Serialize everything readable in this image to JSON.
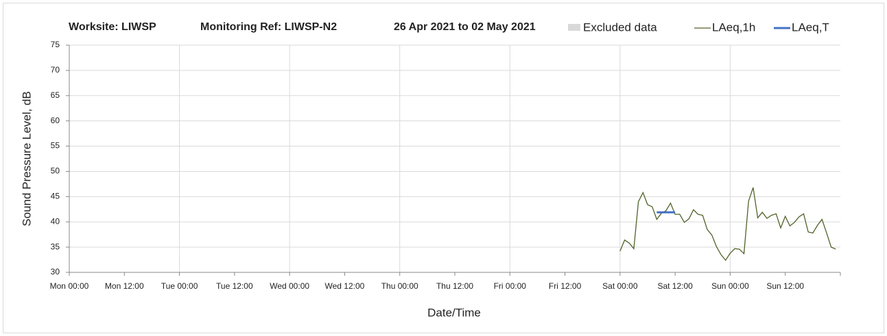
{
  "chart_data": {
    "type": "line",
    "title_parts": [
      "Worksite: LIWSP",
      "Monitoring Ref: LIWSP-N2",
      "26 Apr 2021 to 02 May 2021"
    ],
    "x_label": "Date/Time",
    "y_label": "Sound Pressure Level, dB",
    "xlim": [
      0,
      168
    ],
    "xticks": [
      {
        "value": 0,
        "label": "Mon 00:00"
      },
      {
        "value": 12,
        "label": "Mon 12:00"
      },
      {
        "value": 24,
        "label": "Tue 00:00"
      },
      {
        "value": 36,
        "label": "Tue 12:00"
      },
      {
        "value": 48,
        "label": "Wed 00:00"
      },
      {
        "value": 60,
        "label": "Wed 12:00"
      },
      {
        "value": 72,
        "label": "Thu 00:00"
      },
      {
        "value": 84,
        "label": "Thu 12:00"
      },
      {
        "value": 96,
        "label": "Fri 00:00"
      },
      {
        "value": 108,
        "label": "Fri 12:00"
      },
      {
        "value": 120,
        "label": "Sat 00:00"
      },
      {
        "value": 132,
        "label": "Sat 12:00"
      },
      {
        "value": 144,
        "label": "Sun 00:00"
      },
      {
        "value": 156,
        "label": "Sun 12:00"
      }
    ],
    "ylim": [
      30,
      75
    ],
    "yticks": [
      30,
      35,
      40,
      45,
      50,
      55,
      60,
      65,
      70,
      75
    ],
    "grid": true,
    "legend_position": "top-right",
    "excluded": {
      "name": "Excluded data",
      "color": "#d9d9d9"
    },
    "series": [
      {
        "name": "LAeq,1h",
        "color": "#4f6228",
        "x": [
          120,
          121,
          122,
          123,
          124,
          125,
          126,
          127,
          128,
          129,
          130,
          131,
          132,
          133,
          134,
          135,
          136,
          137,
          138,
          139,
          140,
          141,
          142,
          143,
          144,
          145,
          146,
          147,
          148,
          149,
          150,
          151,
          152,
          153,
          154,
          155,
          156,
          157,
          158,
          159,
          160,
          161,
          162,
          163,
          164,
          165,
          166,
          167
        ],
        "values": [
          34.2,
          36.4,
          35.8,
          34.7,
          44,
          45.8,
          43.4,
          43,
          40.5,
          41.7,
          42.2,
          43.7,
          41.5,
          41.5,
          39.9,
          40.6,
          42.4,
          41.5,
          41.3,
          38.5,
          37.4,
          35.1,
          33.5,
          32.4,
          33.8,
          34.7,
          34.6,
          33.7,
          44.1,
          46.8,
          40.8,
          41.9,
          40.7,
          41.3,
          41.6,
          38.8,
          41.1,
          39.2,
          39.9,
          41,
          41.6,
          38,
          37.8,
          39.3,
          40.5,
          37.8,
          35,
          34.6
        ]
      },
      {
        "name": "LAeq,T",
        "color": "#4472c4",
        "x": [
          128,
          132
        ],
        "values": [
          41.9,
          41.9
        ]
      }
    ]
  }
}
